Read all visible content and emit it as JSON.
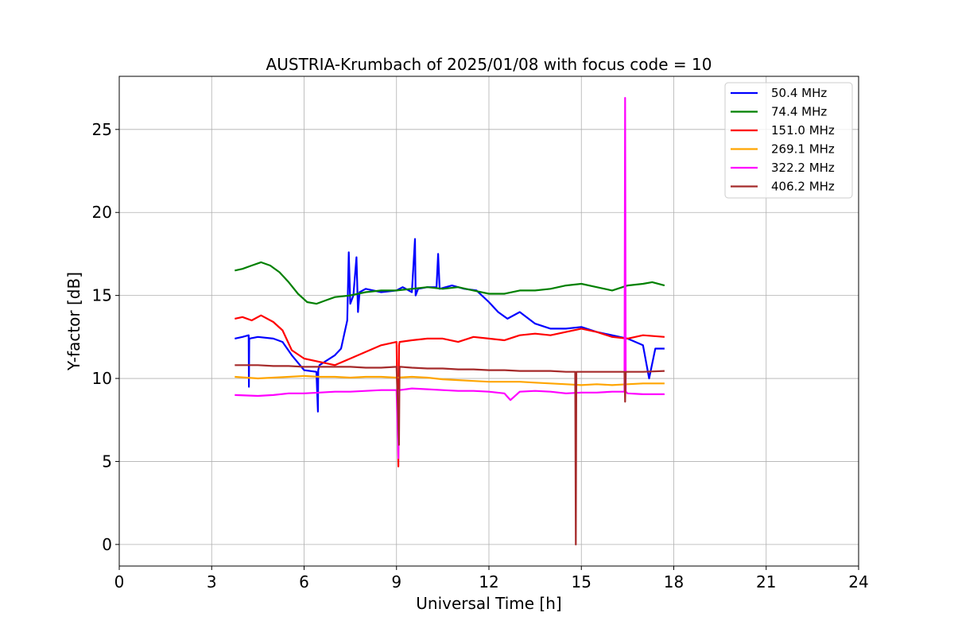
{
  "chart_data": {
    "type": "line",
    "title": "AUSTRIA-Krumbach of 2025/01/08 with focus code = 10",
    "xlabel": "Universal Time [h]",
    "ylabel": "Y-factor [dB]",
    "xlim": [
      0,
      24
    ],
    "ylim": [
      -1.3,
      28.2
    ],
    "xticks": [
      0,
      3,
      6,
      9,
      12,
      15,
      18,
      21,
      24
    ],
    "xtick_labels": [
      "0",
      "3",
      "6",
      "9",
      "12",
      "15",
      "18",
      "21",
      "24"
    ],
    "yticks": [
      0,
      5,
      10,
      15,
      20,
      25
    ],
    "ytick_labels": [
      "0",
      "5",
      "10",
      "15",
      "20",
      "25"
    ],
    "grid": true,
    "legend_position": "top-right",
    "series": [
      {
        "name": " 50.4 MHz",
        "color": "#0000ff",
        "x": [
          3.75,
          4.0,
          4.2,
          4.21,
          4.22,
          4.5,
          5.0,
          5.3,
          5.6,
          6.0,
          6.4,
          6.45,
          6.46,
          6.5,
          7.0,
          7.2,
          7.4,
          7.45,
          7.5,
          7.6,
          7.7,
          7.75,
          7.8,
          8.0,
          8.5,
          9.0,
          9.2,
          9.5,
          9.6,
          9.62,
          9.7,
          10.0,
          10.3,
          10.35,
          10.4,
          10.8,
          11.2,
          11.6,
          12.0,
          12.3,
          12.6,
          13.0,
          13.5,
          14.0,
          14.5,
          15.0,
          15.5,
          16.0,
          16.5,
          17.0,
          17.2,
          17.4,
          17.7
        ],
        "y": [
          12.4,
          12.5,
          12.6,
          9.5,
          12.4,
          12.5,
          12.4,
          12.2,
          11.4,
          10.5,
          10.4,
          8.0,
          10.5,
          10.8,
          11.4,
          11.8,
          13.5,
          17.6,
          14.5,
          15.0,
          17.3,
          14.0,
          15.2,
          15.4,
          15.2,
          15.3,
          15.5,
          15.2,
          18.4,
          15.0,
          15.4,
          15.5,
          15.5,
          17.5,
          15.4,
          15.6,
          15.4,
          15.3,
          14.6,
          14.0,
          13.6,
          14.0,
          13.3,
          13.0,
          13.0,
          13.1,
          12.8,
          12.6,
          12.4,
          12.0,
          10.0,
          11.8,
          11.8
        ]
      },
      {
        "name": " 74.4 MHz",
        "color": "#008000",
        "x": [
          3.75,
          4.0,
          4.3,
          4.6,
          4.9,
          5.2,
          5.5,
          5.8,
          6.1,
          6.4,
          6.7,
          7.0,
          7.5,
          8.0,
          8.5,
          9.0,
          9.5,
          10.0,
          10.5,
          11.0,
          11.5,
          12.0,
          12.5,
          13.0,
          13.5,
          14.0,
          14.5,
          15.0,
          15.5,
          16.0,
          16.5,
          17.0,
          17.3,
          17.7
        ],
        "y": [
          16.5,
          16.6,
          16.8,
          17.0,
          16.8,
          16.4,
          15.8,
          15.1,
          14.6,
          14.5,
          14.7,
          14.9,
          15.0,
          15.2,
          15.3,
          15.3,
          15.4,
          15.5,
          15.4,
          15.5,
          15.3,
          15.1,
          15.1,
          15.3,
          15.3,
          15.4,
          15.6,
          15.7,
          15.5,
          15.3,
          15.6,
          15.7,
          15.8,
          15.6
        ]
      },
      {
        "name": " 151.0 MHz",
        "color": "#ff0000",
        "x": [
          3.75,
          4.0,
          4.3,
          4.6,
          5.0,
          5.3,
          5.6,
          6.0,
          6.5,
          7.0,
          7.5,
          8.0,
          8.5,
          9.0,
          9.06,
          9.08,
          9.1,
          9.5,
          10.0,
          10.5,
          11.0,
          11.5,
          12.0,
          12.5,
          13.0,
          13.5,
          14.0,
          14.5,
          15.0,
          15.5,
          16.0,
          16.5,
          17.0,
          17.7
        ],
        "y": [
          13.6,
          13.7,
          13.5,
          13.8,
          13.4,
          12.9,
          11.7,
          11.2,
          11.0,
          10.8,
          11.2,
          11.6,
          12.0,
          12.2,
          4.7,
          12.0,
          12.2,
          12.3,
          12.4,
          12.4,
          12.2,
          12.5,
          12.4,
          12.3,
          12.6,
          12.7,
          12.6,
          12.8,
          13.0,
          12.8,
          12.5,
          12.4,
          12.6,
          12.5
        ]
      },
      {
        "name": " 269.1 MHz",
        "color": "#ffa500",
        "x": [
          3.75,
          4.5,
          5.0,
          5.5,
          6.0,
          6.5,
          7.0,
          7.5,
          8.0,
          8.5,
          9.0,
          9.5,
          10.0,
          10.5,
          11.0,
          11.5,
          12.0,
          12.5,
          13.0,
          13.5,
          14.0,
          14.5,
          15.0,
          15.5,
          16.0,
          16.5,
          17.0,
          17.7
        ],
        "y": [
          10.1,
          10.0,
          10.05,
          10.1,
          10.15,
          10.1,
          10.1,
          10.05,
          10.1,
          10.1,
          10.05,
          10.1,
          10.05,
          9.95,
          9.9,
          9.85,
          9.8,
          9.8,
          9.8,
          9.75,
          9.7,
          9.65,
          9.6,
          9.65,
          9.6,
          9.65,
          9.7,
          9.7
        ]
      },
      {
        "name": " 322.2 MHz",
        "color": "#ff00ff",
        "x": [
          3.75,
          4.5,
          5.0,
          5.5,
          6.0,
          6.5,
          7.0,
          7.5,
          8.0,
          8.5,
          9.0,
          9.06,
          9.08,
          9.1,
          9.5,
          10.0,
          10.5,
          11.0,
          11.5,
          12.0,
          12.5,
          12.7,
          13.0,
          13.5,
          14.0,
          14.5,
          15.0,
          15.5,
          16.0,
          16.4,
          16.42,
          16.44,
          16.5,
          17.0,
          17.7
        ],
        "y": [
          9.0,
          8.95,
          9.0,
          9.1,
          9.1,
          9.15,
          9.2,
          9.2,
          9.25,
          9.3,
          9.3,
          5.2,
          9.3,
          9.3,
          9.4,
          9.35,
          9.3,
          9.25,
          9.25,
          9.2,
          9.1,
          8.7,
          9.2,
          9.25,
          9.2,
          9.1,
          9.15,
          9.15,
          9.2,
          9.2,
          26.9,
          9.2,
          9.1,
          9.05,
          9.05
        ]
      },
      {
        "name": " 406.2 MHz",
        "color": "#a52a2a",
        "x": [
          3.75,
          4.5,
          5.0,
          5.5,
          6.0,
          6.5,
          7.0,
          7.5,
          8.0,
          8.5,
          9.0,
          9.08,
          9.1,
          9.12,
          9.5,
          10.0,
          10.5,
          11.0,
          11.5,
          12.0,
          12.5,
          13.0,
          13.5,
          14.0,
          14.5,
          14.8,
          14.82,
          14.84,
          15.0,
          15.5,
          16.0,
          16.4,
          16.42,
          16.44,
          16.5,
          17.0,
          17.7
        ],
        "y": [
          10.8,
          10.8,
          10.75,
          10.75,
          10.7,
          10.7,
          10.7,
          10.7,
          10.65,
          10.65,
          10.7,
          6.0,
          10.7,
          10.7,
          10.65,
          10.6,
          10.6,
          10.55,
          10.55,
          10.5,
          10.5,
          10.45,
          10.45,
          10.45,
          10.4,
          10.4,
          0.0,
          10.4,
          10.4,
          10.4,
          10.4,
          10.4,
          8.6,
          10.4,
          10.4,
          10.4,
          10.45
        ]
      }
    ]
  }
}
